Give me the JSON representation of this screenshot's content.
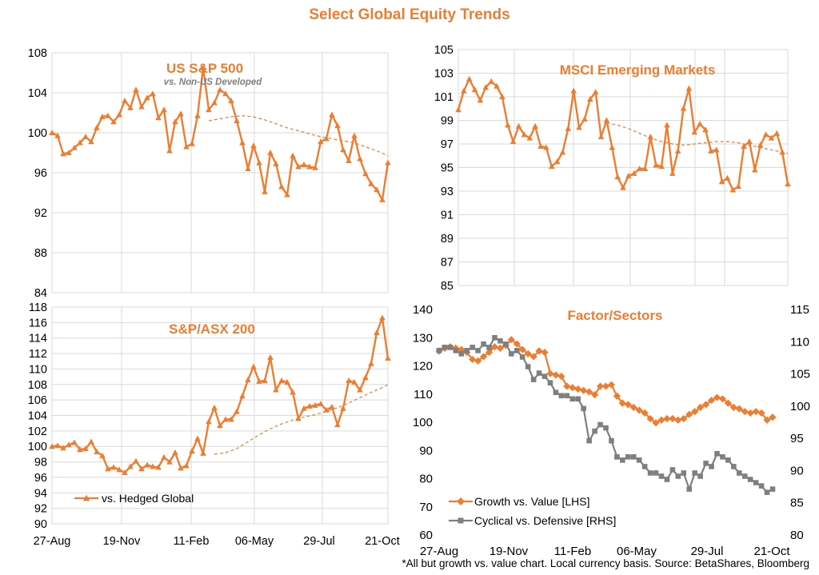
{
  "page": {
    "title": "Select Global Equity Trends",
    "footnote": "*All but growth vs. value chart. Local currency basis.  Source: BetaShares, Bloomberg"
  },
  "colors": {
    "orange": "#ed7d31",
    "grey": "#7f7f7f",
    "grid": "#d9d9d9"
  },
  "chart_data": [
    {
      "id": "sp500",
      "type": "line",
      "title": "US S&P 500",
      "subtitle": "vs. Non-US Developed",
      "yticks": [
        84,
        88,
        92,
        96,
        100,
        104,
        108
      ],
      "ylim": [
        84,
        108
      ],
      "xlim": [
        0,
        60
      ],
      "series": [
        {
          "values": [
            100.0,
            99.7,
            97.9,
            98.0,
            98.5,
            99.0,
            99.6,
            99.1,
            100.5,
            101.6,
            101.7,
            101.1,
            101.8,
            103.2,
            102.5,
            104.3,
            102.6,
            103.5,
            103.9,
            101.5,
            102.3,
            98.2,
            101.1,
            101.9,
            98.6,
            98.9,
            101.7,
            106.5,
            102.3,
            103.0,
            104.3,
            103.9,
            103.2,
            101.2,
            99.0,
            96.4,
            98.7,
            97.0,
            94.1,
            98.0,
            96.9,
            94.6,
            93.8,
            97.7,
            96.6,
            96.8,
            96.6,
            96.5,
            99.1,
            99.4,
            101.8,
            100.7,
            98.3,
            97.2,
            99.7,
            97.4,
            95.9,
            94.9,
            94.3,
            93.3,
            97.0
          ],
          "marker": "triangle"
        },
        {
          "style": "dashed",
          "x": [
            28,
            30,
            32,
            34,
            36,
            38,
            40,
            42,
            44,
            46,
            48,
            50,
            52,
            54,
            56,
            58,
            60
          ],
          "values": [
            101.2,
            101.4,
            101.6,
            101.7,
            101.6,
            101.3,
            100.9,
            100.5,
            100.2,
            99.9,
            99.6,
            99.4,
            99.2,
            99.0,
            98.6,
            98.2,
            97.7
          ]
        }
      ]
    },
    {
      "id": "msci",
      "type": "line",
      "title": "MSCI Emerging Markets",
      "yticks": [
        85,
        87,
        89,
        91,
        93,
        95,
        97,
        99,
        101,
        103,
        105
      ],
      "ylim": [
        85,
        105
      ],
      "xlim": [
        0,
        60
      ],
      "series": [
        {
          "values": [
            99.9,
            101.5,
            102.5,
            101.6,
            100.7,
            101.8,
            102.3,
            101.9,
            101.0,
            98.6,
            97.2,
            98.5,
            97.8,
            97.5,
            98.5,
            96.8,
            96.7,
            95.1,
            95.5,
            96.3,
            98.3,
            101.5,
            98.4,
            99.1,
            100.8,
            101.4,
            97.6,
            99.0,
            96.7,
            94.2,
            93.3,
            94.3,
            94.5,
            94.9,
            94.9,
            97.6,
            95.2,
            95.1,
            98.6,
            94.5,
            96.4,
            100.0,
            101.7,
            98.0,
            98.7,
            98.2,
            96.4,
            96.5,
            93.8,
            94.1,
            93.1,
            93.4,
            96.8,
            97.2,
            94.8,
            96.9,
            97.8,
            97.5,
            97.9,
            96.3,
            93.6
          ],
          "marker": "triangle"
        },
        {
          "style": "dashed",
          "x": [
            27,
            29,
            31,
            33,
            35,
            37,
            39,
            41,
            43,
            45,
            47,
            49,
            51,
            53,
            55,
            57,
            59,
            60
          ],
          "values": [
            98.8,
            98.6,
            98.3,
            97.9,
            97.5,
            97.2,
            97.0,
            96.9,
            97.0,
            97.1,
            97.2,
            97.2,
            97.1,
            96.9,
            96.7,
            96.5,
            96.3,
            96.2
          ]
        }
      ]
    },
    {
      "id": "asx",
      "type": "line",
      "title": "S&P/ASX 200",
      "yticks": [
        90,
        92,
        94,
        96,
        98,
        100,
        102,
        104,
        106,
        108,
        110,
        112,
        114,
        116,
        118
      ],
      "ylim": [
        90,
        118
      ],
      "xlim": [
        0,
        60
      ],
      "xticks": [
        "27-Aug",
        "19-Nov",
        "11-Feb",
        "06-May",
        "29-Jul",
        "21-Oct"
      ],
      "legend": "vs. Hedged Global",
      "series": [
        {
          "name": "vs. Hedged Global",
          "values": [
            100.0,
            100.1,
            99.8,
            100.2,
            100.5,
            99.6,
            99.7,
            100.6,
            99.3,
            98.8,
            97.1,
            97.3,
            97.0,
            96.6,
            97.4,
            98.1,
            97.1,
            97.6,
            97.4,
            97.3,
            98.6,
            98.0,
            99.2,
            97.2,
            97.5,
            99.4,
            101.0,
            99.1,
            103.2,
            105.0,
            102.7,
            103.5,
            103.5,
            104.5,
            106.5,
            108.6,
            110.3,
            108.4,
            108.5,
            111.5,
            107.3,
            108.5,
            108.3,
            107.0,
            103.6,
            104.9,
            105.2,
            105.3,
            105.5,
            104.7,
            105.1,
            102.8,
            104.9,
            108.5,
            108.3,
            107.3,
            108.9,
            110.7,
            114.7,
            116.6,
            111.4
          ],
          "marker": "triangle"
        },
        {
          "style": "dashed",
          "x": [
            29,
            31,
            33,
            35,
            37,
            39,
            41,
            43,
            45,
            47,
            49,
            51,
            53,
            55,
            57,
            59,
            60
          ],
          "values": [
            99.0,
            99.2,
            99.7,
            100.6,
            101.5,
            102.3,
            102.9,
            103.4,
            103.8,
            104.1,
            104.5,
            105.0,
            105.6,
            106.3,
            107.0,
            107.6,
            108.0
          ]
        }
      ]
    },
    {
      "id": "factor",
      "type": "line",
      "title": "Factor/Sectors",
      "yticks": [
        60,
        70,
        80,
        90,
        100,
        110,
        120,
        130,
        140
      ],
      "ylim": [
        60,
        140
      ],
      "y2ticks": [
        80,
        85,
        90,
        95,
        100,
        105,
        110,
        115
      ],
      "y2lim": [
        80,
        115
      ],
      "xlim": [
        0,
        60
      ],
      "xticks": [
        "27-Aug",
        "19-Nov",
        "11-Feb",
        "06-May",
        "29-Jul",
        "21-Oct"
      ],
      "series": [
        {
          "name": "Growth vs. Value [LHS]",
          "axis": "left",
          "marker": "diamond",
          "values": [
            125.0,
            126.0,
            126.5,
            126.0,
            125.5,
            124.5,
            122.0,
            121.5,
            123.0,
            124.5,
            126.5,
            126.0,
            127.0,
            129.0,
            127.5,
            125.5,
            124.0,
            123.0,
            125.0,
            124.5,
            117.0,
            116.5,
            116.0,
            112.5,
            112.0,
            111.5,
            111.0,
            110.5,
            109.5,
            112.5,
            112.5,
            113.0,
            109.0,
            106.5,
            106.0,
            105.0,
            104.0,
            103.0,
            101.0,
            99.5,
            100.5,
            101.0,
            101.0,
            100.5,
            101.0,
            102.5,
            103.5,
            105.0,
            106.0,
            107.5,
            108.5,
            108.0,
            106.5,
            105.0,
            104.5,
            103.5,
            103.0,
            103.5,
            103.0,
            100.5,
            101.5
          ]
        },
        {
          "name": "Cyclical vs. Defensive [RHS]",
          "axis": "right",
          "marker": "square",
          "values": [
            108.5,
            109.0,
            109.0,
            108.5,
            108.0,
            108.5,
            109.0,
            108.5,
            109.5,
            109.0,
            110.5,
            110.0,
            109.5,
            108.0,
            108.5,
            107.5,
            106.0,
            104.0,
            105.0,
            104.5,
            103.5,
            102.0,
            101.5,
            101.5,
            101.0,
            101.0,
            99.5,
            94.5,
            96.0,
            97.0,
            96.5,
            94.5,
            92.0,
            91.5,
            92.0,
            92.0,
            91.5,
            90.5,
            89.5,
            89.5,
            89.0,
            88.5,
            90.0,
            89.0,
            89.5,
            87.0,
            89.5,
            89.0,
            91.0,
            90.5,
            92.5,
            92.0,
            91.5,
            90.5,
            89.5,
            89.0,
            88.5,
            88.0,
            87.5,
            86.5,
            87.0
          ]
        }
      ]
    }
  ]
}
